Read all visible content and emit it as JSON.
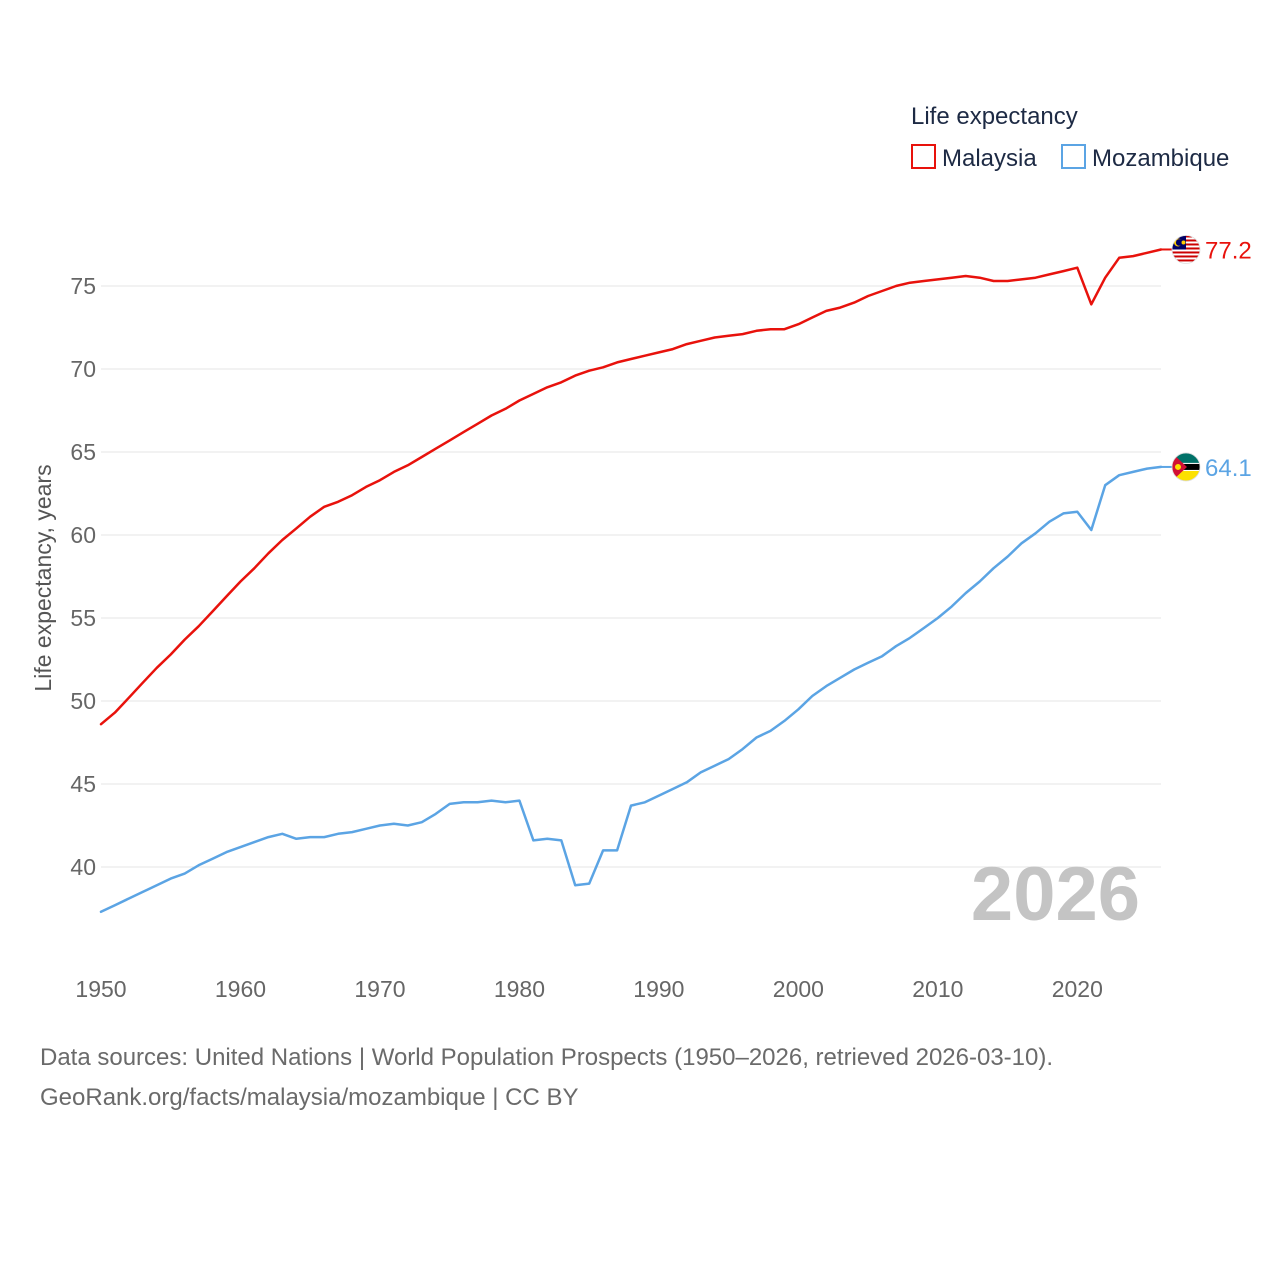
{
  "chart_data": {
    "type": "line",
    "legend_title": "Life expectancy",
    "ylabel": "Life expectancy, years",
    "xlim": [
      1950,
      2026
    ],
    "ylim": [
      35,
      79
    ],
    "yticks": [
      40,
      45,
      50,
      55,
      60,
      65,
      70,
      75
    ],
    "xticks": [
      1950,
      1960,
      1970,
      1980,
      1990,
      2000,
      2010,
      2020
    ],
    "year_watermark": "2026",
    "grid": true,
    "legend_position": "top-right",
    "x": [
      1950,
      1951,
      1952,
      1953,
      1954,
      1955,
      1956,
      1957,
      1958,
      1959,
      1960,
      1961,
      1962,
      1963,
      1964,
      1965,
      1966,
      1967,
      1968,
      1969,
      1970,
      1971,
      1972,
      1973,
      1974,
      1975,
      1976,
      1977,
      1978,
      1979,
      1980,
      1981,
      1982,
      1983,
      1984,
      1985,
      1986,
      1987,
      1988,
      1989,
      1990,
      1991,
      1992,
      1993,
      1994,
      1995,
      1996,
      1997,
      1998,
      1999,
      2000,
      2001,
      2002,
      2003,
      2004,
      2005,
      2006,
      2007,
      2008,
      2009,
      2010,
      2011,
      2012,
      2013,
      2014,
      2015,
      2016,
      2017,
      2018,
      2019,
      2020,
      2021,
      2022,
      2023,
      2024,
      2025,
      2026
    ],
    "series": [
      {
        "name": "Malaysia",
        "color": "#e8120c",
        "end_label": "77.2",
        "flag": "malaysia-flag-icon",
        "values": [
          48.6,
          49.3,
          50.2,
          51.1,
          52.0,
          52.8,
          53.7,
          54.5,
          55.4,
          56.3,
          57.2,
          58.0,
          58.9,
          59.7,
          60.4,
          61.1,
          61.7,
          62.0,
          62.4,
          62.9,
          63.3,
          63.8,
          64.2,
          64.7,
          65.2,
          65.7,
          66.2,
          66.7,
          67.2,
          67.6,
          68.1,
          68.5,
          68.9,
          69.2,
          69.6,
          69.9,
          70.1,
          70.4,
          70.6,
          70.8,
          71.0,
          71.2,
          71.5,
          71.7,
          71.9,
          72.0,
          72.1,
          72.3,
          72.4,
          72.4,
          72.7,
          73.1,
          73.5,
          73.7,
          74.0,
          74.4,
          74.7,
          75.0,
          75.2,
          75.3,
          75.4,
          75.5,
          75.6,
          75.5,
          75.3,
          75.3,
          75.4,
          75.5,
          75.7,
          75.9,
          76.1,
          73.9,
          75.5,
          76.7,
          76.8,
          77.0,
          77.2
        ]
      },
      {
        "name": "Mozambique",
        "color": "#5ba4e4",
        "end_label": "64.1",
        "flag": "mozambique-flag-icon",
        "values": [
          37.3,
          37.7,
          38.1,
          38.5,
          38.9,
          39.3,
          39.6,
          40.1,
          40.5,
          40.9,
          41.2,
          41.5,
          41.8,
          42.0,
          41.7,
          41.8,
          41.8,
          42.0,
          42.1,
          42.3,
          42.5,
          42.6,
          42.5,
          42.7,
          43.2,
          43.8,
          43.9,
          43.9,
          44.0,
          43.9,
          44.0,
          41.6,
          41.7,
          41.6,
          38.9,
          39.0,
          41.0,
          41.0,
          43.7,
          43.9,
          44.3,
          44.7,
          45.1,
          45.7,
          46.1,
          46.5,
          47.1,
          47.8,
          48.2,
          48.8,
          49.5,
          50.3,
          50.9,
          51.4,
          51.9,
          52.3,
          52.7,
          53.3,
          53.8,
          54.4,
          55.0,
          55.7,
          56.5,
          57.2,
          58.0,
          58.7,
          59.5,
          60.1,
          60.8,
          61.3,
          61.4,
          60.3,
          63.0,
          63.6,
          63.8,
          64.0,
          64.1
        ]
      }
    ]
  },
  "footer": {
    "source": "Data sources: United Nations | World Population Prospects (1950–2026, retrieved 2026-03-10).",
    "credit": "GeoRank.org/facts/malaysia/mozambique | CC BY"
  }
}
